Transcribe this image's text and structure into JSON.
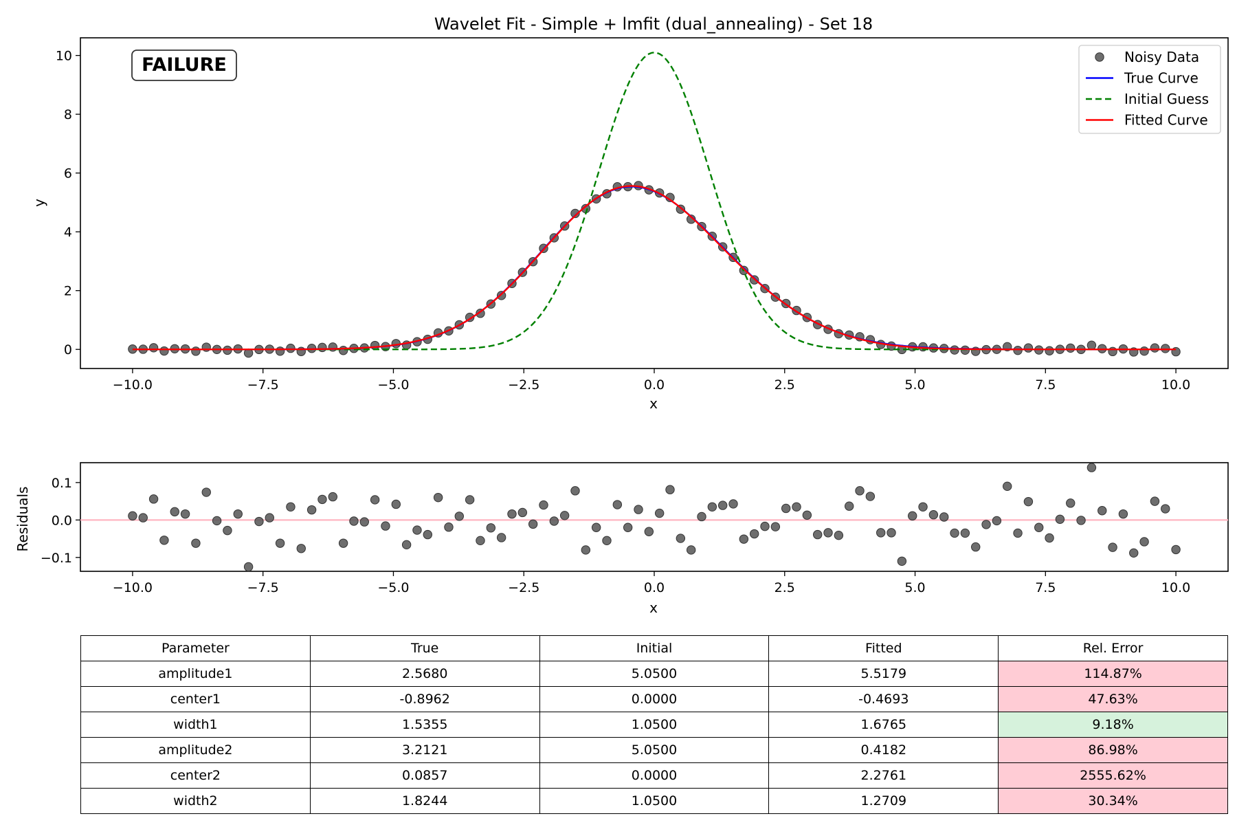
{
  "chart_data": [
    {
      "type": "scatter",
      "title": "Wavelet Fit - Simple + lmfit (dual_annealing) - Set 18",
      "xlabel": "x",
      "ylabel": "y",
      "xlim": [
        -11,
        11
      ],
      "ylim": [
        -0.65,
        10.6
      ],
      "x_ticks": [
        -10.0,
        -7.5,
        -5.0,
        -2.5,
        0.0,
        2.5,
        5.0,
        7.5,
        10.0
      ],
      "x_tick_labels": [
        "−10.0",
        "−7.5",
        "−5.0",
        "−2.5",
        "0.0",
        "2.5",
        "5.0",
        "7.5",
        "10.0"
      ],
      "y_ticks": [
        0,
        2,
        4,
        6,
        8,
        10
      ],
      "y_tick_labels": [
        "0",
        "2",
        "4",
        "6",
        "8",
        "10"
      ],
      "grid": false,
      "legend_position": "top-right",
      "status_label": "FAILURE",
      "status_color": "#ff0000",
      "x_range": [
        -10,
        10
      ],
      "n_points": 100,
      "series": [
        {
          "name": "Noisy Data",
          "kind": "points",
          "color": "#555555",
          "noise": [
            0.011,
            0.006,
            0.056,
            -0.054,
            0.022,
            0.016,
            -0.062,
            0.074,
            -0.002,
            -0.028,
            0.016,
            -0.125,
            -0.004,
            0.006,
            -0.062,
            0.035,
            -0.076,
            0.027,
            0.055,
            0.062,
            -0.062,
            -0.003,
            -0.005,
            0.054,
            -0.016,
            0.042,
            -0.066,
            -0.027,
            -0.039,
            0.06,
            -0.019,
            0.01,
            0.054,
            -0.055,
            -0.021,
            -0.047,
            0.016,
            0.02,
            -0.011,
            0.04,
            -0.003,
            0.012,
            0.078,
            -0.08,
            -0.02,
            -0.055,
            0.041,
            -0.02,
            0.028,
            -0.031,
            0.018,
            0.081,
            -0.049,
            -0.08,
            0.009,
            0.035,
            0.039,
            0.043,
            -0.051,
            -0.037,
            -0.017,
            -0.018,
            0.031,
            0.035,
            0.013,
            -0.039,
            -0.034,
            -0.041,
            0.037,
            0.078,
            0.063,
            -0.034,
            -0.034,
            -0.11,
            0.011,
            0.035,
            0.014,
            0.008,
            -0.035,
            -0.035,
            -0.072,
            -0.012,
            -0.002,
            0.09,
            -0.035,
            0.049,
            -0.02,
            -0.048,
            0.002,
            0.045,
            -0.001,
            0.14,
            0.025,
            -0.073,
            0.016,
            -0.088,
            -0.058,
            0.05,
            0.03,
            -0.079
          ]
        },
        {
          "name": "True Curve",
          "kind": "line",
          "color": "#0000ff",
          "dash": false,
          "params": {
            "amplitude1": 2.568,
            "center1": -0.8962,
            "width1": 1.5355,
            "amplitude2": 3.2121,
            "center2": 0.0857,
            "width2": 1.8244
          }
        },
        {
          "name": "Initial Guess",
          "kind": "line",
          "color": "#008000",
          "dash": true,
          "params": {
            "amplitude1": 5.05,
            "center1": 0.0,
            "width1": 1.05,
            "amplitude2": 5.05,
            "center2": 0.0,
            "width2": 1.05
          }
        },
        {
          "name": "Fitted Curve",
          "kind": "line",
          "color": "#ff0000",
          "dash": false,
          "params": {
            "amplitude1": 5.5179,
            "center1": -0.4693,
            "width1": 1.6765,
            "amplitude2": 0.4182,
            "center2": 2.2761,
            "width2": 1.2709
          }
        }
      ]
    },
    {
      "type": "scatter",
      "xlabel": "x",
      "ylabel": "Residuals",
      "xlim": [
        -11,
        11
      ],
      "ylim": [
        -0.137,
        0.153
      ],
      "x_ticks": [
        -10.0,
        -7.5,
        -5.0,
        -2.5,
        0.0,
        2.5,
        5.0,
        7.5,
        10.0
      ],
      "x_tick_labels": [
        "−10.0",
        "−7.5",
        "−5.0",
        "−2.5",
        "0.0",
        "2.5",
        "5.0",
        "7.5",
        "10.0"
      ],
      "y_ticks": [
        -0.1,
        0.0,
        0.1
      ],
      "y_tick_labels": [
        "−0.1",
        "0.0",
        "0.1"
      ],
      "grid": false,
      "zero_line_color": "#ffb6c1",
      "point_color": "#555555",
      "residuals_source": "Noisy Data noise"
    },
    {
      "type": "table",
      "columns": [
        "Parameter",
        "True",
        "Initial",
        "Fitted",
        "Rel. Error"
      ],
      "rows": [
        {
          "cells": [
            "amplitude1",
            "2.5680",
            "5.0500",
            "5.5179",
            "114.87%"
          ],
          "error_color": "#ffccd5"
        },
        {
          "cells": [
            "center1",
            "-0.8962",
            "0.0000",
            "-0.4693",
            "47.63%"
          ],
          "error_color": "#ffccd5"
        },
        {
          "cells": [
            "width1",
            "1.5355",
            "1.0500",
            "1.6765",
            "9.18%"
          ],
          "error_color": "#d6f2dc"
        },
        {
          "cells": [
            "amplitude2",
            "3.2121",
            "5.0500",
            "0.4182",
            "86.98%"
          ],
          "error_color": "#ffccd5"
        },
        {
          "cells": [
            "center2",
            "0.0857",
            "0.0000",
            "2.2761",
            "2555.62%"
          ],
          "error_color": "#ffccd5"
        },
        {
          "cells": [
            "width2",
            "1.8244",
            "1.0500",
            "1.2709",
            "30.34%"
          ],
          "error_color": "#ffccd5"
        }
      ]
    }
  ]
}
